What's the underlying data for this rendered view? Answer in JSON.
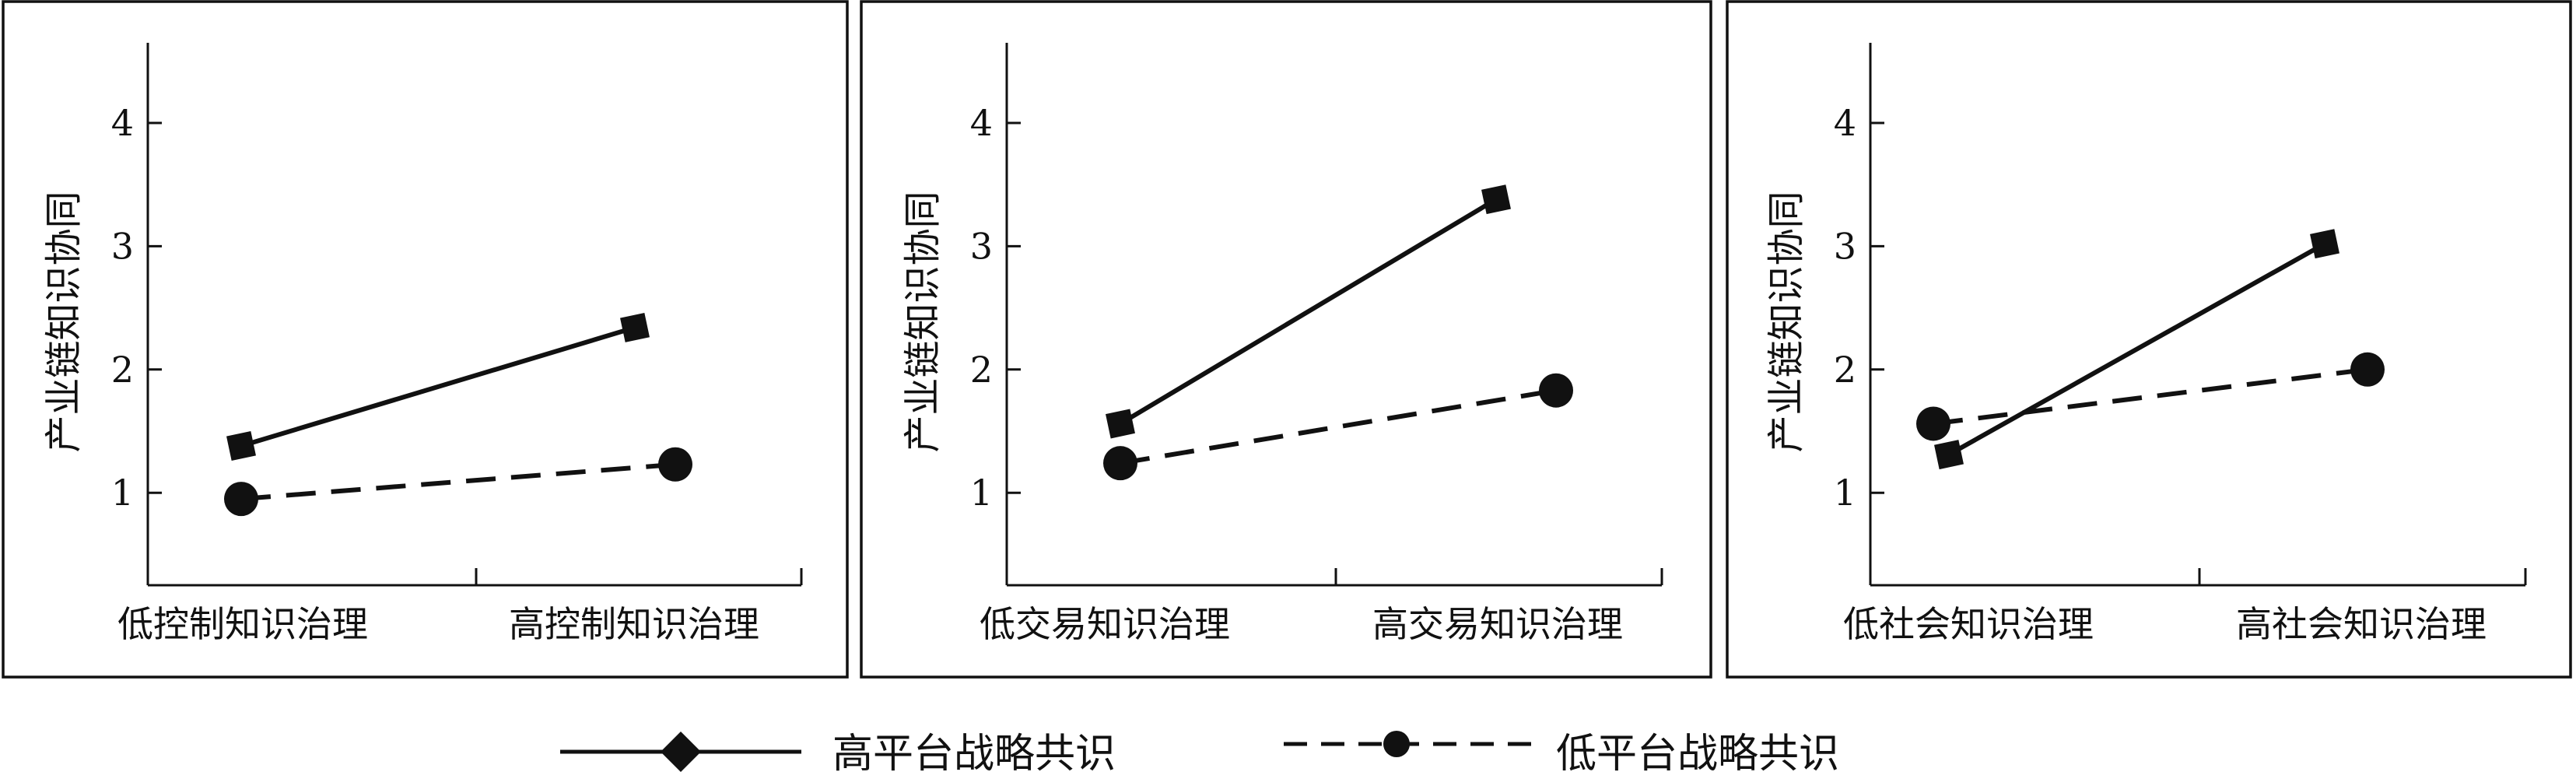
{
  "legend": {
    "entries": [
      {
        "label": "高平台战略共识",
        "style": "solid",
        "marker": "diamond"
      },
      {
        "label": "低平台战略共识",
        "style": "dashed",
        "marker": "circle"
      }
    ]
  },
  "chart_data": [
    {
      "type": "line",
      "title": "",
      "xlabel": "",
      "ylabel": "产业链知识协同",
      "categories": [
        "低控制知识治理",
        "高控制知识治理"
      ],
      "series": [
        {
          "name": "高平台战略共识",
          "values": [
            1.38,
            2.34
          ]
        },
        {
          "name": "低平台战略共识",
          "values": [
            0.95,
            1.23
          ]
        }
      ],
      "yticks": [
        1,
        2,
        3,
        4
      ],
      "ylim": [
        0.25,
        4.65
      ],
      "grid": false
    },
    {
      "type": "line",
      "title": "",
      "xlabel": "",
      "ylabel": "产业链知识协同",
      "categories": [
        "低交易知识治理",
        "高交易知识治理"
      ],
      "series": [
        {
          "name": "高平台战略共识",
          "values": [
            1.56,
            3.38
          ]
        },
        {
          "name": "低平台战略共识",
          "values": [
            1.24,
            1.83
          ]
        }
      ],
      "yticks": [
        1,
        2,
        3,
        4
      ],
      "ylim": [
        0.25,
        4.65
      ],
      "grid": false
    },
    {
      "type": "line",
      "title": "",
      "xlabel": "",
      "ylabel": "产业链知识协同",
      "categories": [
        "低社会知识治理",
        "高社会知识治理"
      ],
      "series": [
        {
          "name": "高平台战略共识",
          "values": [
            1.31,
            3.02
          ]
        },
        {
          "name": "低平台战略共识",
          "values": [
            1.56,
            2.0
          ]
        }
      ],
      "yticks": [
        1,
        2,
        3,
        4
      ],
      "ylim": [
        0.25,
        4.65
      ],
      "grid": false
    }
  ]
}
